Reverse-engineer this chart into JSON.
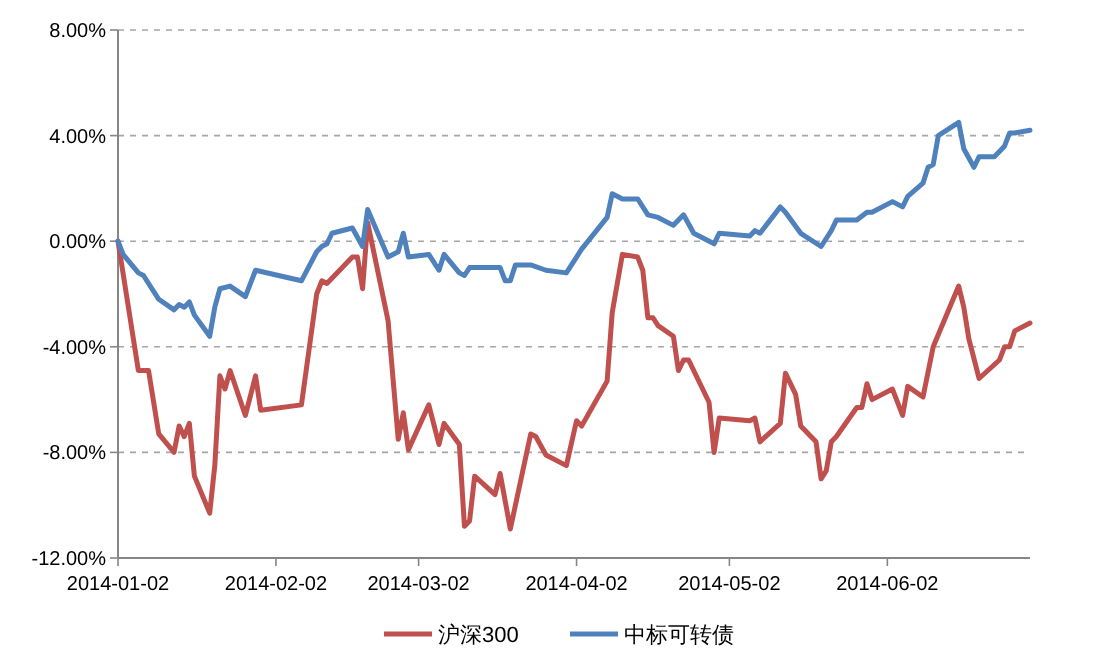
{
  "chart_data": {
    "type": "line",
    "xlim": [
      "2014-01-02",
      "2014-06-30"
    ],
    "xticks": [
      "2014-01-02",
      "2014-02-02",
      "2014-03-02",
      "2014-04-02",
      "2014-05-02",
      "2014-06-02"
    ],
    "ylim": [
      -12,
      8
    ],
    "yticks": [
      {
        "value": -12,
        "label": "-12.00%"
      },
      {
        "value": -8,
        "label": "-8.00%"
      },
      {
        "value": -4,
        "label": "-4.00%"
      },
      {
        "value": 0,
        "label": "0.00%"
      },
      {
        "value": 4,
        "label": "4.00%"
      },
      {
        "value": 8,
        "label": "8.00%"
      }
    ],
    "grid": "y",
    "legend": "bottom",
    "marker": "none",
    "line_style": "solid",
    "series": [
      {
        "name": "沪深300",
        "color": "#c0504d",
        "x": [
          "2014-01-02",
          "2014-01-06",
          "2014-01-08",
          "2014-01-10",
          "2014-01-13",
          "2014-01-14",
          "2014-01-15",
          "2014-01-16",
          "2014-01-17",
          "2014-01-20",
          "2014-01-21",
          "2014-01-22",
          "2014-01-23",
          "2014-01-24",
          "2014-01-27",
          "2014-01-29",
          "2014-01-30",
          "2014-02-07",
          "2014-02-10",
          "2014-02-11",
          "2014-02-12",
          "2014-02-17",
          "2014-02-18",
          "2014-02-19",
          "2014-02-20",
          "2014-02-24",
          "2014-02-26",
          "2014-02-27",
          "2014-02-28",
          "2014-03-04",
          "2014-03-06",
          "2014-03-07",
          "2014-03-10",
          "2014-03-11",
          "2014-03-12",
          "2014-03-13",
          "2014-03-17",
          "2014-03-18",
          "2014-03-20",
          "2014-03-24",
          "2014-03-25",
          "2014-03-27",
          "2014-03-31",
          "2014-04-02",
          "2014-04-03",
          "2014-04-08",
          "2014-04-09",
          "2014-04-11",
          "2014-04-14",
          "2014-04-15",
          "2014-04-16",
          "2014-04-17",
          "2014-04-18",
          "2014-04-21",
          "2014-04-22",
          "2014-04-23",
          "2014-04-24",
          "2014-04-28",
          "2014-04-29",
          "2014-04-30",
          "2014-05-06",
          "2014-05-07",
          "2014-05-08",
          "2014-05-12",
          "2014-05-13",
          "2014-05-15",
          "2014-05-16",
          "2014-05-19",
          "2014-05-20",
          "2014-05-21",
          "2014-05-22",
          "2014-05-23",
          "2014-05-27",
          "2014-05-28",
          "2014-05-29",
          "2014-05-30",
          "2014-06-03",
          "2014-06-05",
          "2014-06-06",
          "2014-06-09",
          "2014-06-11",
          "2014-06-16",
          "2014-06-17",
          "2014-06-18",
          "2014-06-20",
          "2014-06-24",
          "2014-06-25",
          "2014-06-26",
          "2014-06-27",
          "2014-06-30"
        ],
        "values": [
          0,
          -4.9,
          -4.9,
          -7.3,
          -8.0,
          -7.0,
          -7.4,
          -6.9,
          -8.9,
          -10.3,
          -8.5,
          -5.1,
          -5.6,
          -4.9,
          -6.6,
          -5.1,
          -6.4,
          -6.2,
          -2.0,
          -1.5,
          -1.6,
          -0.6,
          -0.6,
          -1.8,
          0.7,
          -3.0,
          -7.5,
          -6.5,
          -7.9,
          -6.2,
          -7.7,
          -6.9,
          -7.7,
          -10.8,
          -10.6,
          -8.9,
          -9.6,
          -8.8,
          -10.9,
          -7.3,
          -7.4,
          -8.1,
          -8.5,
          -6.8,
          -7.0,
          -5.3,
          -2.7,
          -0.5,
          -0.6,
          -1.1,
          -2.9,
          -2.9,
          -3.2,
          -3.6,
          -4.9,
          -4.5,
          -4.5,
          -6.1,
          -8.0,
          -6.7,
          -6.8,
          -6.7,
          -7.6,
          -6.9,
          -5.0,
          -5.8,
          -7.0,
          -7.6,
          -9.0,
          -8.7,
          -7.6,
          -7.4,
          -6.3,
          -6.3,
          -5.4,
          -6.0,
          -5.6,
          -6.6,
          -5.5,
          -5.9,
          -4.0,
          -1.7,
          -2.5,
          -3.7,
          -5.2,
          -4.5,
          -4.0,
          -4.0,
          -3.4,
          -3.1
        ]
      },
      {
        "name": "中标可转债",
        "color": "#4f81bd",
        "x": [
          "2014-01-02",
          "2014-01-03",
          "2014-01-06",
          "2014-01-07",
          "2014-01-10",
          "2014-01-13",
          "2014-01-14",
          "2014-01-15",
          "2014-01-16",
          "2014-01-17",
          "2014-01-20",
          "2014-01-21",
          "2014-01-22",
          "2014-01-24",
          "2014-01-27",
          "2014-01-29",
          "2014-02-07",
          "2014-02-10",
          "2014-02-11",
          "2014-02-12",
          "2014-02-13",
          "2014-02-17",
          "2014-02-19",
          "2014-02-20",
          "2014-02-24",
          "2014-02-26",
          "2014-02-27",
          "2014-02-28",
          "2014-03-04",
          "2014-03-06",
          "2014-03-07",
          "2014-03-10",
          "2014-03-11",
          "2014-03-12",
          "2014-03-18",
          "2014-03-19",
          "2014-03-20",
          "2014-03-21",
          "2014-03-24",
          "2014-03-27",
          "2014-03-31",
          "2014-04-02",
          "2014-04-03",
          "2014-04-08",
          "2014-04-09",
          "2014-04-11",
          "2014-04-14",
          "2014-04-16",
          "2014-04-18",
          "2014-04-21",
          "2014-04-23",
          "2014-04-25",
          "2014-04-29",
          "2014-04-30",
          "2014-05-06",
          "2014-05-07",
          "2014-05-08",
          "2014-05-12",
          "2014-05-13",
          "2014-05-16",
          "2014-05-20",
          "2014-05-22",
          "2014-05-23",
          "2014-05-27",
          "2014-05-29",
          "2014-05-30",
          "2014-06-03",
          "2014-06-05",
          "2014-06-06",
          "2014-06-09",
          "2014-06-10",
          "2014-06-11",
          "2014-06-12",
          "2014-06-16",
          "2014-06-17",
          "2014-06-19",
          "2014-06-20",
          "2014-06-23",
          "2014-06-25",
          "2014-06-26",
          "2014-06-27",
          "2014-06-30"
        ],
        "values": [
          0,
          -0.5,
          -1.2,
          -1.3,
          -2.2,
          -2.6,
          -2.4,
          -2.5,
          -2.3,
          -2.8,
          -3.6,
          -2.5,
          -1.8,
          -1.7,
          -2.1,
          -1.1,
          -1.5,
          -0.4,
          -0.2,
          -0.1,
          0.3,
          0.5,
          -0.2,
          1.2,
          -0.6,
          -0.4,
          0.3,
          -0.6,
          -0.5,
          -1.1,
          -0.5,
          -1.2,
          -1.3,
          -1.0,
          -1.0,
          -1.5,
          -1.5,
          -0.9,
          -0.9,
          -1.1,
          -1.2,
          -0.6,
          -0.3,
          0.9,
          1.8,
          1.6,
          1.6,
          1.0,
          0.9,
          0.6,
          1.0,
          0.3,
          -0.1,
          0.3,
          0.2,
          0.4,
          0.3,
          1.3,
          1.1,
          0.3,
          -0.2,
          0.4,
          0.8,
          0.8,
          1.1,
          1.1,
          1.5,
          1.3,
          1.7,
          2.2,
          2.8,
          2.9,
          4.0,
          4.5,
          3.5,
          2.8,
          3.2,
          3.2,
          3.6,
          4.1,
          4.1,
          4.2
        ]
      }
    ]
  }
}
